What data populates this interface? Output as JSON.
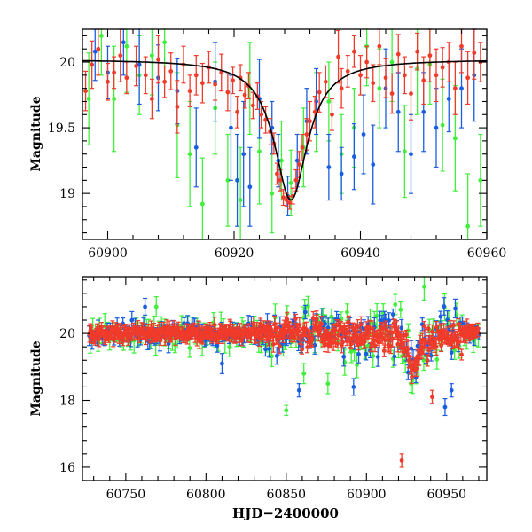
{
  "chart_data": [
    {
      "id": "top",
      "type": "scatter",
      "ylabel": "Magnitude",
      "xlabel": "",
      "xlim": [
        60896,
        60960
      ],
      "ylim": [
        20.25,
        18.65
      ],
      "y_inverted": true,
      "x_ticks": [
        60900,
        60920,
        60940,
        60960
      ],
      "x_tick_labels": [
        "60900",
        "60920",
        "60940",
        "60960"
      ],
      "y_ticks": [
        19,
        19.5,
        20
      ],
      "y_tick_labels": [
        "19",
        "19.5",
        "20"
      ],
      "colors": {
        "red": "#f03a2a",
        "blue": "#1a5ee0",
        "green": "#3ef03a",
        "fit": "#000000"
      },
      "fit_model": {
        "type": "lorentzian",
        "peak_x": 60929,
        "peak_mag": 18.95,
        "baseline_mag": 20.02,
        "half_width": 3.2
      },
      "series": [
        {
          "name": "red",
          "points": [
            [
              60896.5,
              19.78,
              0.15
            ],
            [
              60897.5,
              19.98,
              0.18
            ],
            [
              60898.5,
              20.1,
              0.2
            ],
            [
              60900,
              19.85,
              0.14
            ],
            [
              60901,
              19.92,
              0.12
            ],
            [
              60902,
              20.05,
              0.2
            ],
            [
              60903,
              19.88,
              0.12
            ],
            [
              60904.5,
              19.97,
              0.15
            ],
            [
              60906,
              19.9,
              0.14
            ],
            [
              60907,
              19.72,
              0.15
            ],
            [
              60908,
              20.02,
              0.18
            ],
            [
              60909,
              19.85,
              0.12
            ],
            [
              60910,
              19.93,
              0.14
            ],
            [
              60911,
              19.66,
              0.2
            ],
            [
              60912,
              19.98,
              0.14
            ],
            [
              60913,
              19.78,
              0.12
            ],
            [
              60914,
              19.9,
              0.15
            ],
            [
              60915,
              19.84,
              0.15
            ],
            [
              60916,
              19.96,
              0.12
            ],
            [
              60917,
              19.83,
              0.12
            ],
            [
              60918,
              19.92,
              0.14
            ],
            [
              60919,
              19.77,
              0.14
            ],
            [
              60919.8,
              19.86,
              0.1
            ],
            [
              60920.5,
              19.62,
              0.12
            ],
            [
              60921,
              19.88,
              0.1
            ],
            [
              60921.7,
              19.75,
              0.1
            ],
            [
              60922.3,
              19.82,
              0.1
            ],
            [
              60923,
              19.67,
              0.1
            ],
            [
              60923.7,
              19.74,
              0.1
            ],
            [
              60924.3,
              19.6,
              0.1
            ],
            [
              60925,
              19.56,
              0.1
            ],
            [
              60925.7,
              19.47,
              0.1
            ],
            [
              60926.3,
              19.38,
              0.08
            ],
            [
              60926.8,
              19.15,
              0.08
            ],
            [
              60927.3,
              19.1,
              0.08
            ],
            [
              60927.8,
              18.97,
              0.06
            ],
            [
              60928.3,
              18.95,
              0.05
            ],
            [
              60928.8,
              18.93,
              0.05
            ],
            [
              60929.3,
              18.98,
              0.06
            ],
            [
              60929.8,
              19.1,
              0.08
            ],
            [
              60930.3,
              19.22,
              0.1
            ],
            [
              60930.8,
              19.35,
              0.1
            ],
            [
              60931.5,
              19.45,
              0.12
            ],
            [
              60932,
              19.55,
              0.15
            ],
            [
              60932.8,
              19.62,
              0.12
            ],
            [
              60933.5,
              19.77,
              0.15
            ],
            [
              60934.5,
              19.85,
              0.12
            ],
            [
              60935.5,
              19.6,
              0.12
            ],
            [
              60936.5,
              20.04,
              0.2
            ],
            [
              60937,
              19.8,
              0.15
            ],
            [
              60938,
              19.93,
              0.12
            ],
            [
              60939,
              20.08,
              0.12
            ],
            [
              60940,
              19.9,
              0.15
            ],
            [
              60941,
              20.0,
              0.12
            ],
            [
              60942,
              19.84,
              0.14
            ],
            [
              60943,
              20.12,
              0.14
            ],
            [
              60944,
              19.88,
              0.15
            ],
            [
              60945,
              19.76,
              0.15
            ],
            [
              60946,
              20.06,
              0.15
            ],
            [
              60947,
              19.9,
              0.14
            ],
            [
              60948,
              19.76,
              0.2
            ],
            [
              60949,
              20.08,
              0.14
            ],
            [
              60950,
              19.86,
              0.18
            ],
            [
              60951,
              20.05,
              0.2
            ],
            [
              60952,
              19.9,
              0.2
            ],
            [
              60953,
              19.96,
              0.15
            ],
            [
              60954,
              20.0,
              0.15
            ],
            [
              60955,
              19.8,
              0.2
            ],
            [
              60956,
              20.12,
              0.2
            ],
            [
              60957,
              19.88,
              0.2
            ],
            [
              60958,
              20.07,
              0.2
            ],
            [
              60959,
              20.0,
              0.15
            ]
          ]
        },
        {
          "name": "blue",
          "points": [
            [
              60898,
              20.08,
              0.22
            ],
            [
              60900,
              19.92,
              0.2
            ],
            [
              60902.5,
              20.15,
              0.25
            ],
            [
              60905,
              19.98,
              0.3
            ],
            [
              60908,
              19.88,
              0.25
            ],
            [
              60911,
              19.78,
              0.25
            ],
            [
              60914,
              19.35,
              0.3
            ],
            [
              60917,
              19.85,
              0.3
            ],
            [
              60919.5,
              19.5,
              0.4
            ],
            [
              60920.5,
              19.1,
              0.35
            ],
            [
              60921.5,
              19.3,
              0.4
            ],
            [
              60922.5,
              19.05,
              0.3
            ],
            [
              60924,
              19.72,
              0.3
            ],
            [
              60926,
              19.5,
              0.2
            ],
            [
              60927,
              19.25,
              0.2
            ],
            [
              60928.5,
              18.98,
              0.15
            ],
            [
              60930,
              19.25,
              0.2
            ],
            [
              60931.5,
              19.55,
              0.25
            ],
            [
              60933,
              19.7,
              0.25
            ],
            [
              60935,
              19.2,
              0.25
            ],
            [
              60937,
              19.15,
              0.2
            ],
            [
              60939,
              19.28,
              0.25
            ],
            [
              60940.5,
              19.45,
              0.3
            ],
            [
              60942,
              19.22,
              0.3
            ],
            [
              60944,
              19.8,
              0.3
            ],
            [
              60946,
              19.62,
              0.3
            ],
            [
              60948,
              19.3,
              0.3
            ],
            [
              60950,
              19.62,
              0.3
            ],
            [
              60952,
              19.5,
              0.3
            ],
            [
              60954,
              19.72,
              0.25
            ],
            [
              60956,
              19.8,
              0.3
            ],
            [
              60958,
              19.9,
              0.35
            ]
          ]
        },
        {
          "name": "green",
          "points": [
            [
              60897,
              19.72,
              0.35
            ],
            [
              60899,
              20.2,
              0.3
            ],
            [
              60901,
              19.72,
              0.4
            ],
            [
              60903,
              20.12,
              0.35
            ],
            [
              60905,
              19.9,
              0.3
            ],
            [
              60907,
              20.05,
              0.3
            ],
            [
              60909,
              20.15,
              0.3
            ],
            [
              60911,
              19.52,
              0.4
            ],
            [
              60913,
              19.3,
              0.4
            ],
            [
              60915,
              18.92,
              0.35
            ],
            [
              60917,
              19.65,
              0.35
            ],
            [
              60919,
              19.1,
              0.35
            ],
            [
              60921,
              18.95,
              0.4
            ],
            [
              60922.5,
              19.8,
              0.35
            ],
            [
              60924,
              19.32,
              0.4
            ],
            [
              60926,
              19.0,
              0.3
            ],
            [
              60927.5,
              19.25,
              0.3
            ],
            [
              60929,
              19.08,
              0.25
            ],
            [
              60931,
              19.35,
              0.3
            ],
            [
              60933,
              19.62,
              0.3
            ],
            [
              60935,
              19.7,
              0.3
            ],
            [
              60937,
              19.3,
              0.3
            ],
            [
              60939,
              19.5,
              0.3
            ],
            [
              60941,
              20.12,
              0.3
            ],
            [
              60943,
              19.8,
              0.3
            ],
            [
              60945,
              20.0,
              0.3
            ],
            [
              60947,
              19.32,
              0.35
            ],
            [
              60949,
              19.95,
              0.35
            ],
            [
              60951,
              19.98,
              0.3
            ],
            [
              60953,
              19.52,
              0.35
            ],
            [
              60955,
              19.42,
              0.4
            ],
            [
              60957,
              18.75,
              0.4
            ],
            [
              60959,
              19.1,
              0.35
            ]
          ]
        }
      ]
    },
    {
      "id": "bottom",
      "type": "scatter",
      "ylabel": "Magnitude",
      "xlabel": "HJD−2400000",
      "xlim": [
        60723,
        60975
      ],
      "ylim": [
        21.7,
        15.6
      ],
      "y_inverted": true,
      "x_ticks": [
        60750,
        60800,
        60850,
        60900,
        60950
      ],
      "x_tick_labels": [
        "60750",
        "60800",
        "60850",
        "60900",
        "60950"
      ],
      "y_ticks": [
        16,
        18,
        20
      ],
      "y_tick_labels": [
        "16",
        "18",
        "20"
      ],
      "colors": {
        "red": "#f03a2a",
        "blue": "#1a5ee0",
        "green": "#3ef03a"
      },
      "series_generation": {
        "x_start": 60727,
        "x_end": 60970,
        "baseline_mag": 20.0,
        "peak_x": 60929,
        "peak_mag": 18.95
      },
      "outliers": [
        {
          "series": "red",
          "x": 60922,
          "y": 16.2,
          "err": 0.2
        },
        {
          "series": "red",
          "x": 60941,
          "y": 18.1,
          "err": 0.2
        },
        {
          "series": "green",
          "x": 60850,
          "y": 17.7,
          "err": 0.15
        },
        {
          "series": "green",
          "x": 60769,
          "y": 20.8,
          "err": 0.3
        },
        {
          "series": "green",
          "x": 60936,
          "y": 21.4,
          "err": 0.4
        },
        {
          "series": "green",
          "x": 60861,
          "y": 18.8,
          "err": 0.3
        },
        {
          "series": "green",
          "x": 60876,
          "y": 18.5,
          "err": 0.3
        },
        {
          "series": "blue",
          "x": 60858,
          "y": 18.3,
          "err": 0.2
        },
        {
          "series": "blue",
          "x": 60949,
          "y": 17.8,
          "err": 0.25
        },
        {
          "series": "blue",
          "x": 60953,
          "y": 18.3,
          "err": 0.2
        },
        {
          "series": "blue",
          "x": 60892,
          "y": 18.4,
          "err": 0.25
        },
        {
          "series": "blue",
          "x": 60762,
          "y": 20.8,
          "err": 0.25
        },
        {
          "series": "blue",
          "x": 60810,
          "y": 19.1,
          "err": 0.3
        }
      ]
    }
  ]
}
